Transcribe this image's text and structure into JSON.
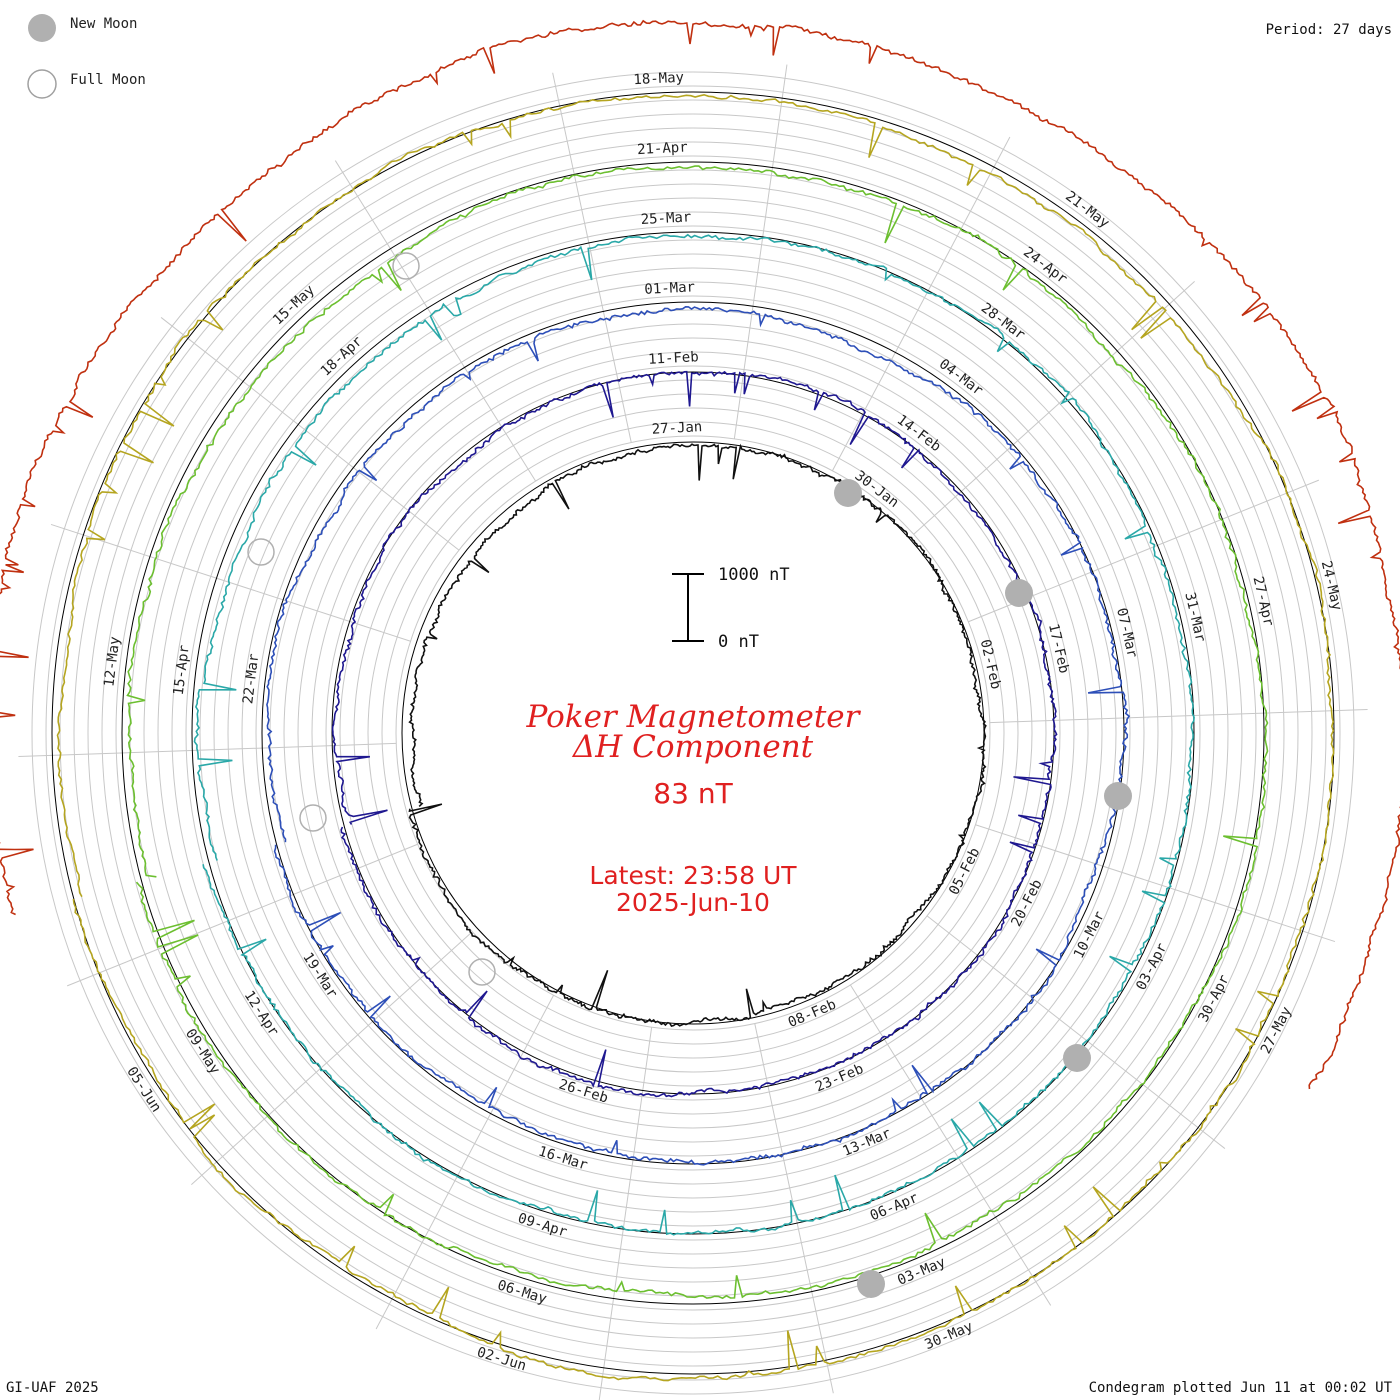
{
  "chart_data": {
    "type": "line",
    "title": "Poker Magnetometer",
    "subtitle": "ΔH Component",
    "value_text": "83 nT",
    "latest_line1": "Latest: 23:58 UT",
    "latest_line2": "2025-Jun-10",
    "period_text": "Period: 27 days",
    "credit_text": "GI-UAF 2025",
    "plotted_text": "Condegram plotted Jun 11 at 00:02 UT",
    "legend": [
      {
        "name": "New Moon",
        "symbol": "filled-circle",
        "color": "#b0b0b0"
      },
      {
        "name": "Full Moon",
        "symbol": "open-circle",
        "color": "#a0a0a0"
      }
    ],
    "scale_bar": {
      "top_label": "1000 nT",
      "bottom_label": "0 nT",
      "value_nT": 1000
    },
    "rings": [
      {
        "color": "#101010",
        "date_labels": [
          "27-Jan",
          "30-Jan",
          "02-Feb",
          "05-Feb",
          "08-Feb"
        ]
      },
      {
        "color": "#1f1890",
        "date_labels": [
          "11-Feb",
          "14-Feb",
          "17-Feb",
          "20-Feb",
          "23-Feb",
          "26-Feb"
        ]
      },
      {
        "color": "#2d4fb8",
        "date_labels": [
          "01-Mar",
          "04-Mar",
          "07-Mar",
          "10-Mar",
          "13-Mar",
          "16-Mar",
          "19-Mar",
          "22-Mar"
        ]
      },
      {
        "color": "#2aa8a8",
        "date_labels": [
          "25-Mar",
          "28-Mar",
          "31-Mar",
          "03-Apr",
          "06-Apr",
          "09-Apr",
          "12-Apr",
          "15-Apr",
          "18-Apr"
        ]
      },
      {
        "color": "#6cbf30",
        "date_labels": [
          "21-Apr",
          "24-Apr",
          "27-Apr",
          "30-Apr",
          "03-May",
          "06-May",
          "09-May",
          "12-May",
          "15-May"
        ]
      },
      {
        "color": "#b5a520",
        "date_labels": [
          "18-May",
          "21-May",
          "24-May",
          "27-May",
          "30-May",
          "02-Jun",
          "05-Jun"
        ]
      },
      {
        "color": "#c03010",
        "date_labels": []
      }
    ],
    "new_moons": [
      "29-Jan",
      "28-Feb",
      "29-Mar",
      "27-Apr",
      "27-May"
    ],
    "full_moons": [
      "12-Feb",
      "14-Mar",
      "13-Apr",
      "12-May",
      "11-Jun"
    ],
    "days_per_revolution": 27
  }
}
